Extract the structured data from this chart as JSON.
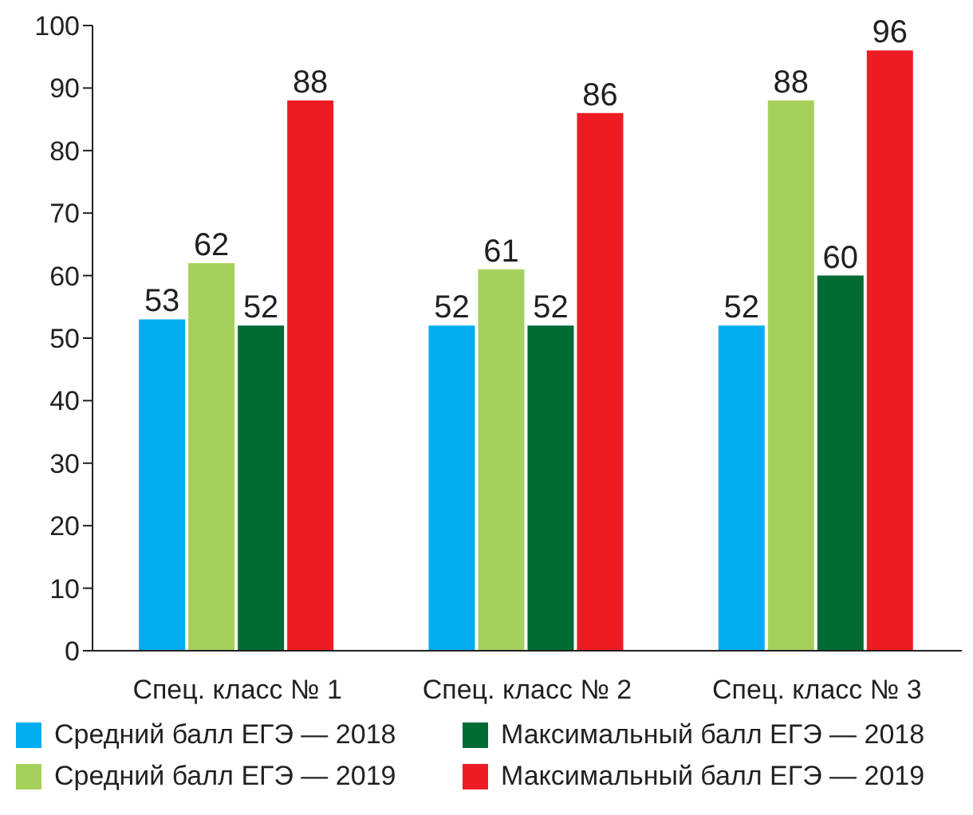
{
  "chart_data": {
    "type": "bar",
    "categories": [
      "Спец. класс № 1",
      "Спец. класс № 2",
      "Спец. класс № 3"
    ],
    "series": [
      {
        "name": "Средний балл ЕГЭ — 2018",
        "color": "#00aeef",
        "values": [
          53,
          52,
          52
        ]
      },
      {
        "name": "Средний балл ЕГЭ — 2019",
        "color": "#a6d05c",
        "values": [
          62,
          61,
          88
        ]
      },
      {
        "name": "Максимальный балл ЕГЭ — 2018",
        "color": "#006b33",
        "values": [
          52,
          52,
          60
        ]
      },
      {
        "name": "Максимальный балл ЕГЭ — 2019",
        "color": "#ed1c24",
        "values": [
          88,
          86,
          96
        ]
      }
    ],
    "ylim": [
      0,
      100
    ],
    "yticks": [
      0,
      10,
      20,
      30,
      40,
      50,
      60,
      70,
      80,
      90,
      100
    ],
    "grid": false,
    "legend": "bottom",
    "data_labels": true
  }
}
